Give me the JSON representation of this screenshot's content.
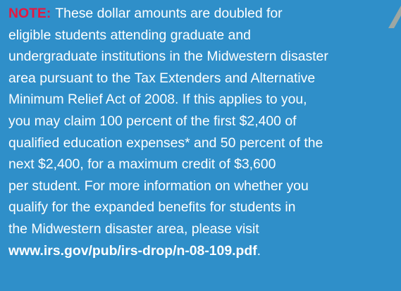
{
  "note": {
    "label": "NOTE:",
    "lines": [
      "These dollar amounts are doubled for",
      "eligible students attending graduate and",
      "undergraduate institutions in the Midwestern disaster",
      "area pursuant to the Tax Extenders and Alternative",
      "Minimum Relief Act of 2008. If this applies to you,",
      "you may claim 100 percent of the first $2,400 of",
      "qualified education expenses* and 50 percent of the",
      "next $2,400, for a maximum credit of $3,600",
      "per student. For more information on whether you",
      "qualify for the expanded benefits for students in",
      "the Midwestern disaster area, please visit"
    ],
    "link": "www.irs.gov/pub/irs-drop/n-08-109.pdf",
    "link_suffix": "."
  }
}
